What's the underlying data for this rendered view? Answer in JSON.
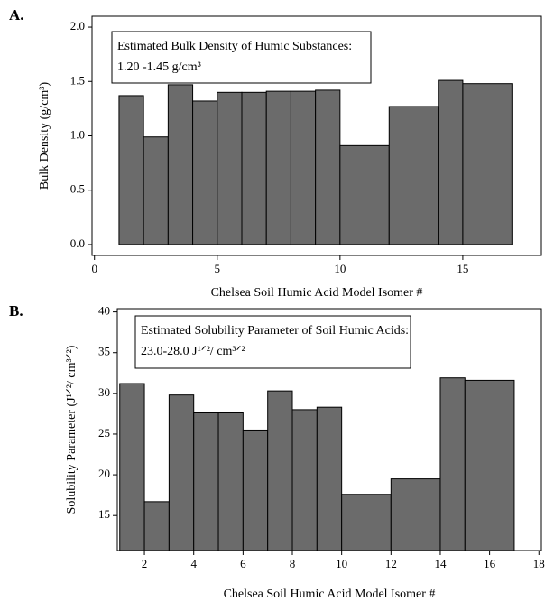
{
  "chart_data": [
    {
      "type": "histogram",
      "panel_label": "A.",
      "xlabel": "Chelsea Soil Humic Acid Model Isomer #",
      "ylabel": "Bulk Density (g/cm³)",
      "annotation": [
        "Estimated Bulk Density of Humic Substances:",
        "1.20 -1.45 g/cm³"
      ],
      "bins": [
        1,
        2,
        3,
        4,
        5,
        6,
        7,
        8,
        9,
        10,
        12,
        14,
        15,
        17
      ],
      "values": [
        1.37,
        0.99,
        1.47,
        1.32,
        1.4,
        1.4,
        1.41,
        1.41,
        1.42,
        0.91,
        1.27,
        1.51,
        1.48
      ],
      "color": "#6b6b6b",
      "xlim": [
        -0.1,
        18.2
      ],
      "ylim": [
        -0.1,
        2.1
      ],
      "xticks": [
        0,
        5,
        10,
        15
      ],
      "yticks": [
        {
          "value": 0,
          "label": "0.0"
        },
        {
          "value": 0.5,
          "label": "0.5"
        },
        {
          "value": 1,
          "label": "1.0"
        },
        {
          "value": 1.5,
          "label": "1.5"
        },
        {
          "value": 2,
          "label": "2.0"
        }
      ]
    },
    {
      "type": "histogram",
      "panel_label": "B.",
      "xlabel": "Chelsea Soil Humic Acid Model Isomer #",
      "ylabel": "Solubility Parameter (J¹ᐟ²/ cm³ᐟ²)",
      "annotation": [
        "Estimated Solubility Parameter of Soil Humic Acids:",
        "23.0-28.0 J¹ᐟ²/ cm³ᐟ²"
      ],
      "bins": [
        1,
        2,
        3,
        4,
        5,
        6,
        7,
        8,
        9,
        10,
        12,
        14,
        15,
        17
      ],
      "values": [
        31.2,
        16.7,
        29.8,
        27.6,
        27.6,
        25.5,
        30.3,
        28.0,
        28.3,
        17.6,
        19.5,
        31.9,
        31.6
      ],
      "color": "#6b6b6b",
      "xlim": [
        0.9,
        18.1
      ],
      "ylim": [
        10.7,
        40.4
      ],
      "xticks": [
        2,
        4,
        6,
        8,
        10,
        12,
        14,
        16,
        18
      ],
      "yticks": [
        15,
        20,
        25,
        30,
        35,
        40
      ]
    }
  ]
}
